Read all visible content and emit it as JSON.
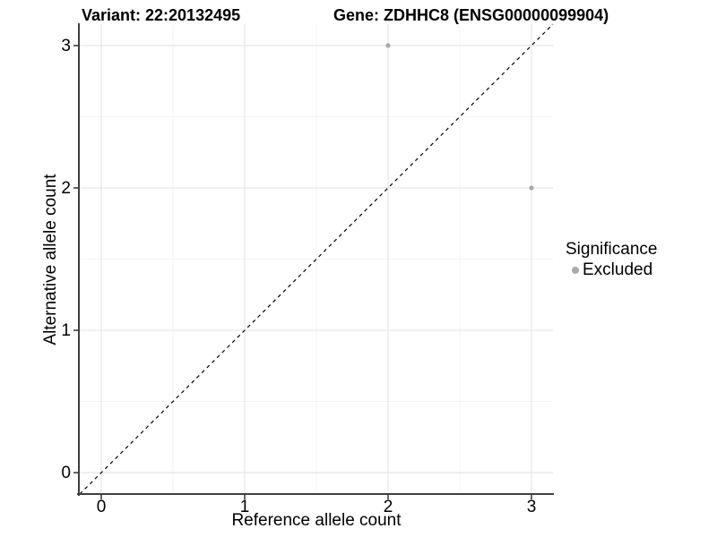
{
  "chart_data": {
    "type": "scatter",
    "title_left": "Variant: 22:20132495",
    "title_right": "Gene: ZDHHC8 (ENSG00000099904)",
    "xlabel": "Reference allele count",
    "ylabel": "Alternative allele count",
    "xlim": [
      -0.15,
      3.15
    ],
    "ylim": [
      -0.15,
      3.15
    ],
    "x_ticks": [
      0,
      1,
      2,
      3
    ],
    "y_ticks": [
      0,
      1,
      2,
      3
    ],
    "minor_ticks": [
      0.5,
      1.5,
      2.5
    ],
    "grid": true,
    "identity_line": {
      "slope": 1,
      "intercept": 0,
      "style": "dashed",
      "color": "#000000"
    },
    "series": [
      {
        "name": "Excluded",
        "color": "#a9a9a9",
        "points": [
          {
            "x": 2,
            "y": 3
          },
          {
            "x": 3,
            "y": 2
          }
        ]
      }
    ],
    "legend": {
      "title": "Significance",
      "position": "right",
      "items": [
        {
          "label": "Excluded",
          "color": "#a9a9a9"
        }
      ]
    },
    "colors": {
      "background": "#ffffff",
      "grid_major": "#e5e5e5",
      "grid_minor": "#f3f3f3",
      "axis": "#3f3f3f",
      "text": "#000000"
    }
  }
}
